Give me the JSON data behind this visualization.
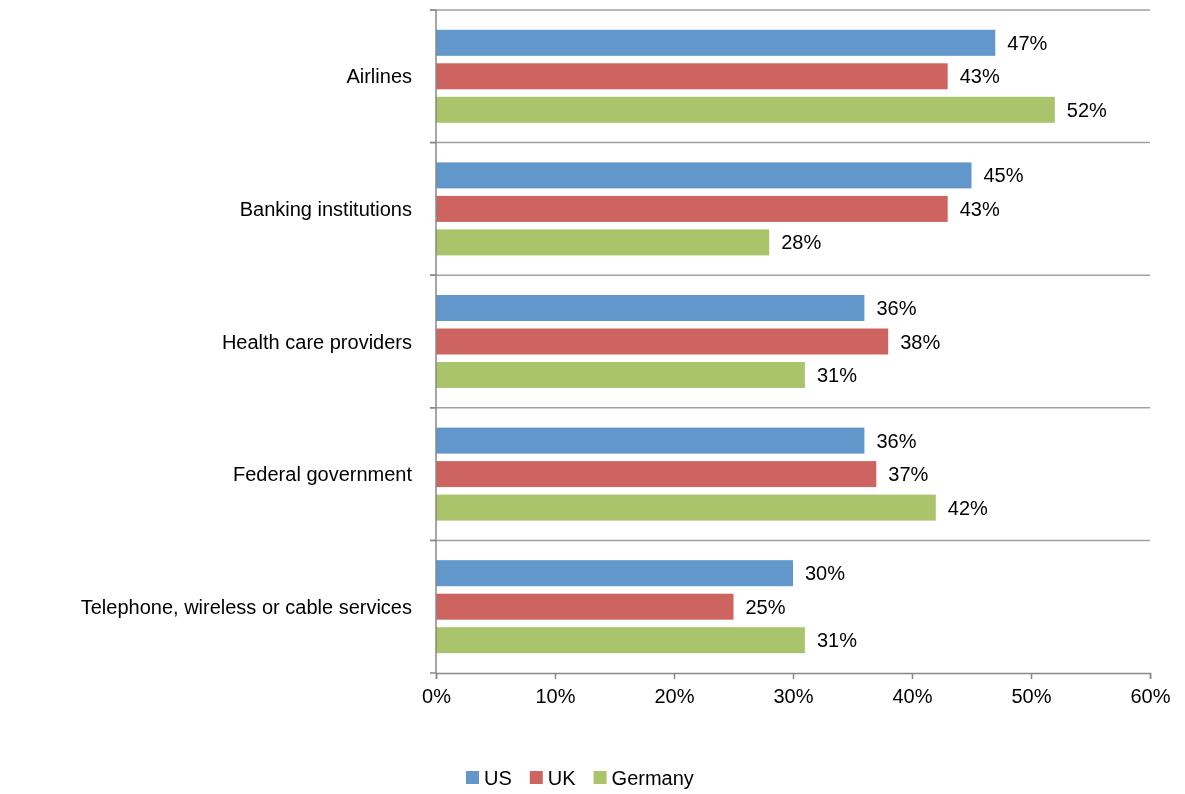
{
  "chart_data": {
    "type": "bar",
    "orientation": "horizontal",
    "categories": [
      "Airlines",
      "Banking institutions",
      "Health care providers",
      "Federal government",
      "Telephone, wireless or cable services"
    ],
    "series": [
      {
        "name": "US",
        "color": "#6197cb",
        "values": [
          47,
          45,
          36,
          36,
          30
        ],
        "value_labels": [
          "47%",
          "45%",
          "36%",
          "36%",
          "30%"
        ]
      },
      {
        "name": "UK",
        "color": "#cd6460",
        "values": [
          43,
          43,
          38,
          37,
          25
        ],
        "value_labels": [
          "43%",
          "43%",
          "38%",
          "37%",
          "25%"
        ]
      },
      {
        "name": "Germany",
        "color": "#a9c46a",
        "values": [
          52,
          28,
          31,
          42,
          31
        ],
        "value_labels": [
          "52%",
          "28%",
          "31%",
          "42%",
          "31%"
        ]
      }
    ],
    "xlim": [
      0,
      60
    ],
    "xticks": [
      {
        "value": 0,
        "label": "0%"
      },
      {
        "value": 10,
        "label": "10%"
      },
      {
        "value": 20,
        "label": "20%"
      },
      {
        "value": 30,
        "label": "30%"
      },
      {
        "value": 40,
        "label": "40%"
      },
      {
        "value": 50,
        "label": "50%"
      },
      {
        "value": 60,
        "label": "60%"
      }
    ],
    "grid": "y",
    "legend": "bottom"
  }
}
